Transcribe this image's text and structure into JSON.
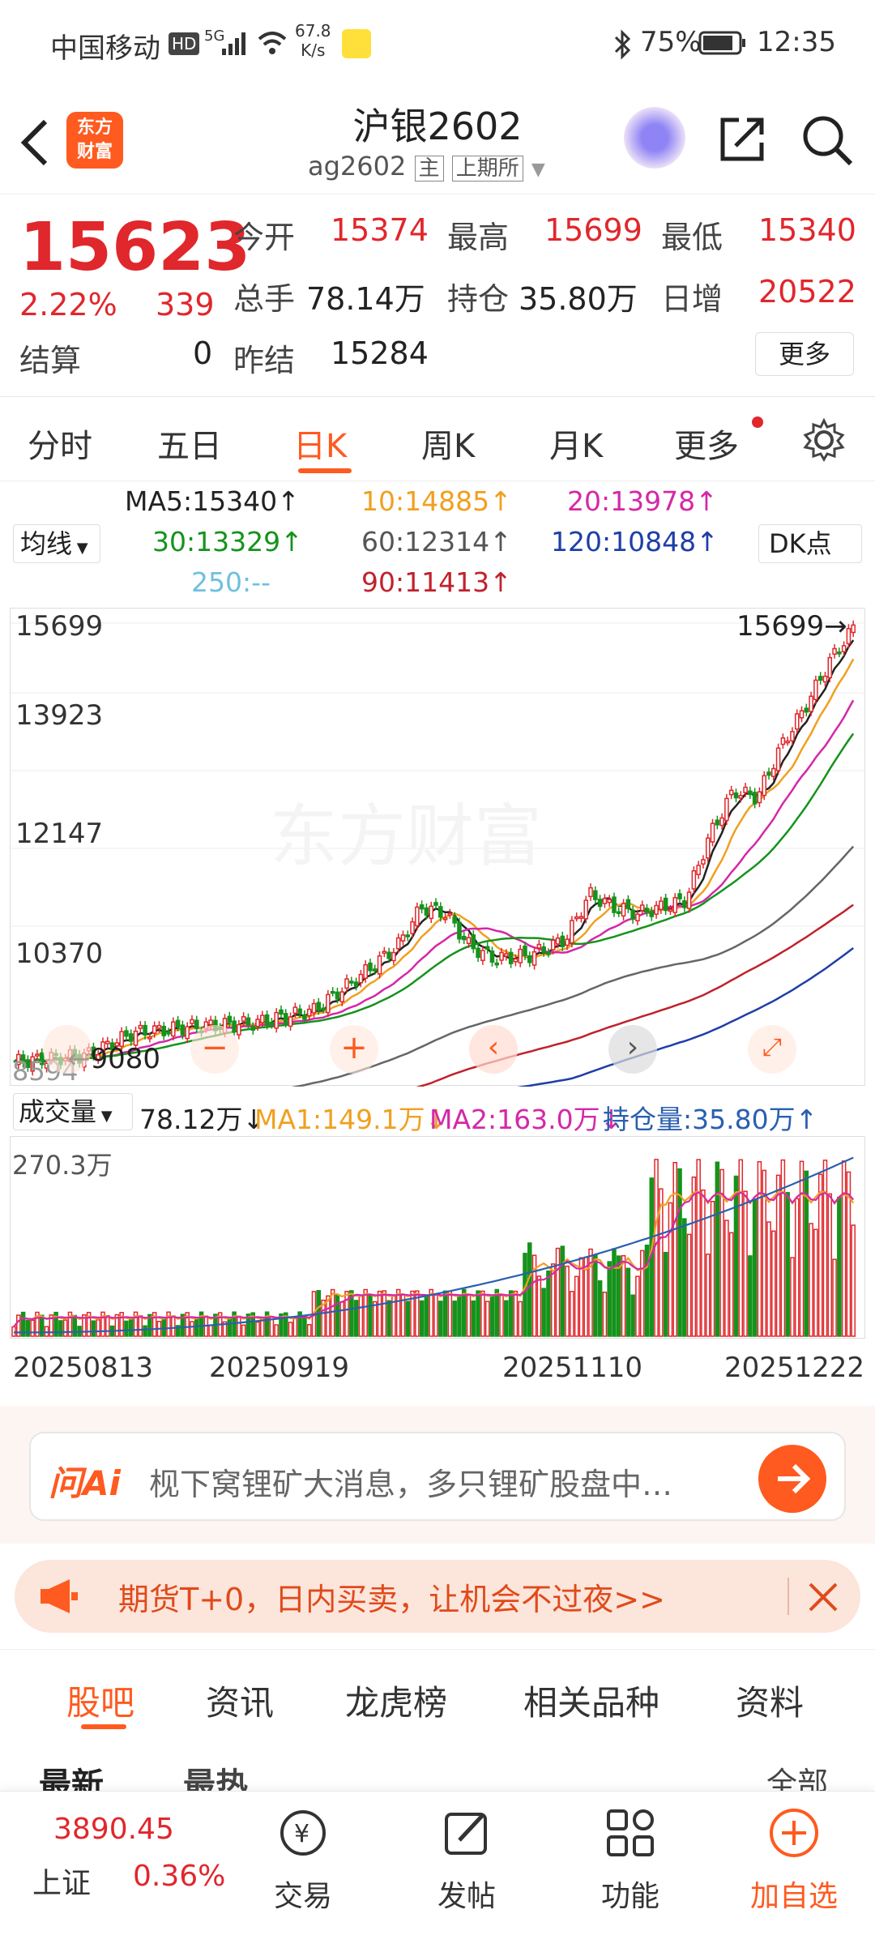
{
  "status": {
    "carrier": "中国移动",
    "hd": "HD",
    "net": "5G",
    "speed_num": "67.8",
    "speed_unit": "K/s",
    "battery": "75%",
    "time": "12:35"
  },
  "header": {
    "logo_line1": "东方",
    "logo_line2": "财富",
    "title": "沪银2602",
    "code": "ag2602",
    "main_tag": "主",
    "exchange": "上期所"
  },
  "quote": {
    "price": "15623",
    "change_pct": "2.22%",
    "change": "339",
    "open_label": "今开",
    "open": "15374",
    "high_label": "最高",
    "high": "15699",
    "low_label": "最低",
    "low": "15340",
    "vol_label": "总手",
    "vol": "78.14万",
    "oi_label": "持仓",
    "oi": "35.80万",
    "daily_inc_label": "日增",
    "daily_inc": "20522",
    "settle_label": "结算",
    "settle": "0",
    "prev_settle_label": "昨结",
    "prev_settle": "15284",
    "more": "更多"
  },
  "tabs": [
    "分时",
    "五日",
    "日K",
    "周K",
    "月K",
    "更多"
  ],
  "ma": {
    "selector": "均线",
    "dk": "DK点",
    "ma5": "MA5:15340↑",
    "ma10": "10:14885↑",
    "ma20": "20:13978↑",
    "ma30": "30:13329↑",
    "ma60": "60:12314↑",
    "ma120": "120:10848↑",
    "ma250": "250:--",
    "ma90": "90:11413↑"
  },
  "chart_axis": {
    "y1": "15699",
    "y2": "13923",
    "y3": "12147",
    "y4": "10370",
    "low": "8594",
    "low_marker": "←9080",
    "high_marker": "15699→",
    "watermark": "东方财富"
  },
  "volume": {
    "selector": "成交量",
    "vol": "78.12万↓",
    "ma1": "MA1:149.1万↓",
    "ma2": "MA2:163.0万↓",
    "oi": "持仓量:35.80万↑",
    "max": "270.3万"
  },
  "dates": [
    "20250813",
    "20250919",
    "20251110",
    "20251222"
  ],
  "ai": {
    "brand": "问Ai",
    "placeholder": "枧下窝锂矿大消息，多只锂矿股盘中…"
  },
  "promo": {
    "text": "期货T+0，日内买卖，让机会不过夜>>"
  },
  "bottom_tabs": [
    "股吧",
    "资讯",
    "龙虎榜",
    "相关品种",
    "资料"
  ],
  "sub_tabs": {
    "latest": "最新",
    "hot": "最热",
    "all": "全部"
  },
  "nav": {
    "index_value": "3890.45",
    "index_name": "上证",
    "index_pct": "0.36%",
    "trade": "交易",
    "post": "发帖",
    "func": "功能",
    "add": "加自选"
  },
  "colors": {
    "accent": "#ff5a1f",
    "up": "#e0272c",
    "down": "#15931c"
  }
}
